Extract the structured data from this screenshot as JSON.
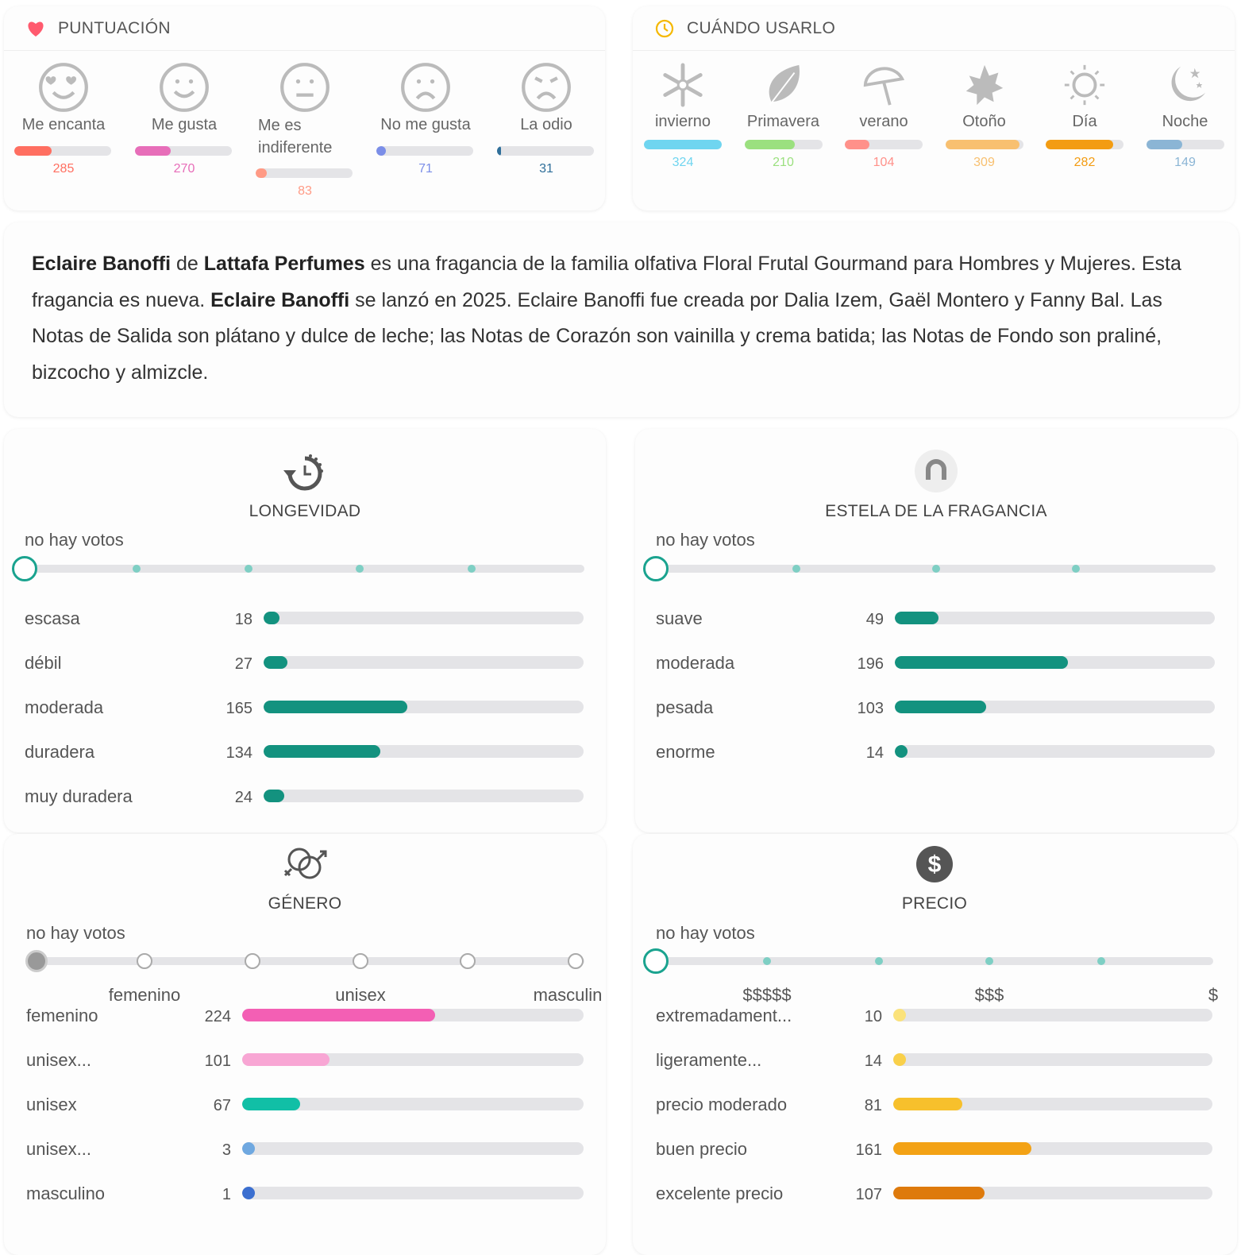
{
  "rating": {
    "title": "PUNTUACIÓN",
    "items": [
      {
        "label": "Me encanta",
        "count": 285,
        "color": "#ff6f61",
        "icon": "love-face-icon"
      },
      {
        "label": "Me gusta",
        "count": 270,
        "color": "#e76eb9",
        "icon": "smile-face-icon"
      },
      {
        "label": "Me es indiferente",
        "count": 83,
        "color": "#ff9a85",
        "icon": "neutral-face-icon"
      },
      {
        "label": "No me gusta",
        "count": 71,
        "color": "#7b8ee8",
        "icon": "sad-face-icon"
      },
      {
        "label": "La odio",
        "count": 31,
        "color": "#2f6f9a",
        "icon": "angry-face-icon"
      }
    ]
  },
  "when": {
    "title": "CUÁNDO USARLO",
    "items": [
      {
        "label": "invierno",
        "count": 324,
        "color": "#6fd5f0",
        "icon": "snowflake-icon"
      },
      {
        "label": "Primavera",
        "count": 210,
        "color": "#9be07f",
        "icon": "leaf-icon"
      },
      {
        "label": "verano",
        "count": 104,
        "color": "#ff918a",
        "icon": "umbrella-icon"
      },
      {
        "label": "Otoño",
        "count": 309,
        "color": "#f8c070",
        "icon": "maple-leaf-icon"
      },
      {
        "label": "Día",
        "count": 282,
        "color": "#f39c12",
        "icon": "sun-icon"
      },
      {
        "label": "Noche",
        "count": 149,
        "color": "#8bb5d5",
        "icon": "moon-icon"
      }
    ]
  },
  "description": {
    "name": "Eclaire Banoffi",
    "de": " de ",
    "brand": "Lattafa Perfumes",
    "part1": " es una fragancia de la familia olfativa Floral Frutal Gourmand para Hombres y Mujeres. Esta fragancia es nueva. ",
    "name2": "Eclaire Banoffi",
    "part2": " se lanzó en 2025. Eclaire Banoffi fue creada por Dalia Izem, Gaël Montero y Fanny Bal. Las Notas de Salida son plátano y dulce de leche; las Notas de Corazón son vainilla y crema batida; las Notas de Fondo son praliné, bizcocho y almizcle."
  },
  "longevity": {
    "title": "LONGEVIDAD",
    "no_votes": "no hay votos",
    "color": "#13927f",
    "rows": [
      {
        "label": "escasa",
        "count": 18
      },
      {
        "label": "débil",
        "count": 27
      },
      {
        "label": "moderada",
        "count": 165
      },
      {
        "label": "duradera",
        "count": 134
      },
      {
        "label": "muy duradera",
        "count": 24
      }
    ]
  },
  "sillage": {
    "title": "ESTELA DE LA FRAGANCIA",
    "no_votes": "no hay votos",
    "color": "#13927f",
    "rows": [
      {
        "label": "suave",
        "count": 49
      },
      {
        "label": "moderada",
        "count": 196
      },
      {
        "label": "pesada",
        "count": 103
      },
      {
        "label": "enorme",
        "count": 14
      }
    ]
  },
  "gender": {
    "title": "GÉNERO",
    "no_votes": "no hay votos",
    "ticks": [
      "femenino",
      "unisex",
      "masculin"
    ],
    "rows": [
      {
        "label": "femenino",
        "count": 224,
        "color": "#f35fb4"
      },
      {
        "label": "unisex...",
        "count": 101,
        "color": "#f8a6d4"
      },
      {
        "label": "unisex",
        "count": 67,
        "color": "#11bfa6"
      },
      {
        "label": "unisex...",
        "count": 3,
        "color": "#6fa8e0"
      },
      {
        "label": "masculino",
        "count": 1,
        "color": "#3b6fd0"
      }
    ]
  },
  "price": {
    "title": "PRECIO",
    "no_votes": "no hay votos",
    "ticks": [
      "$$$$$",
      "$$$",
      "$"
    ],
    "rows": [
      {
        "label": "extremadament...",
        "count": 10,
        "color": "#fbe27a"
      },
      {
        "label": "ligeramente...",
        "count": 14,
        "color": "#f9d04a"
      },
      {
        "label": "precio moderado",
        "count": 81,
        "color": "#f7c02c"
      },
      {
        "label": "buen precio",
        "count": 161,
        "color": "#f3a215"
      },
      {
        "label": "excelente precio",
        "count": 107,
        "color": "#de7a0c"
      }
    ]
  }
}
